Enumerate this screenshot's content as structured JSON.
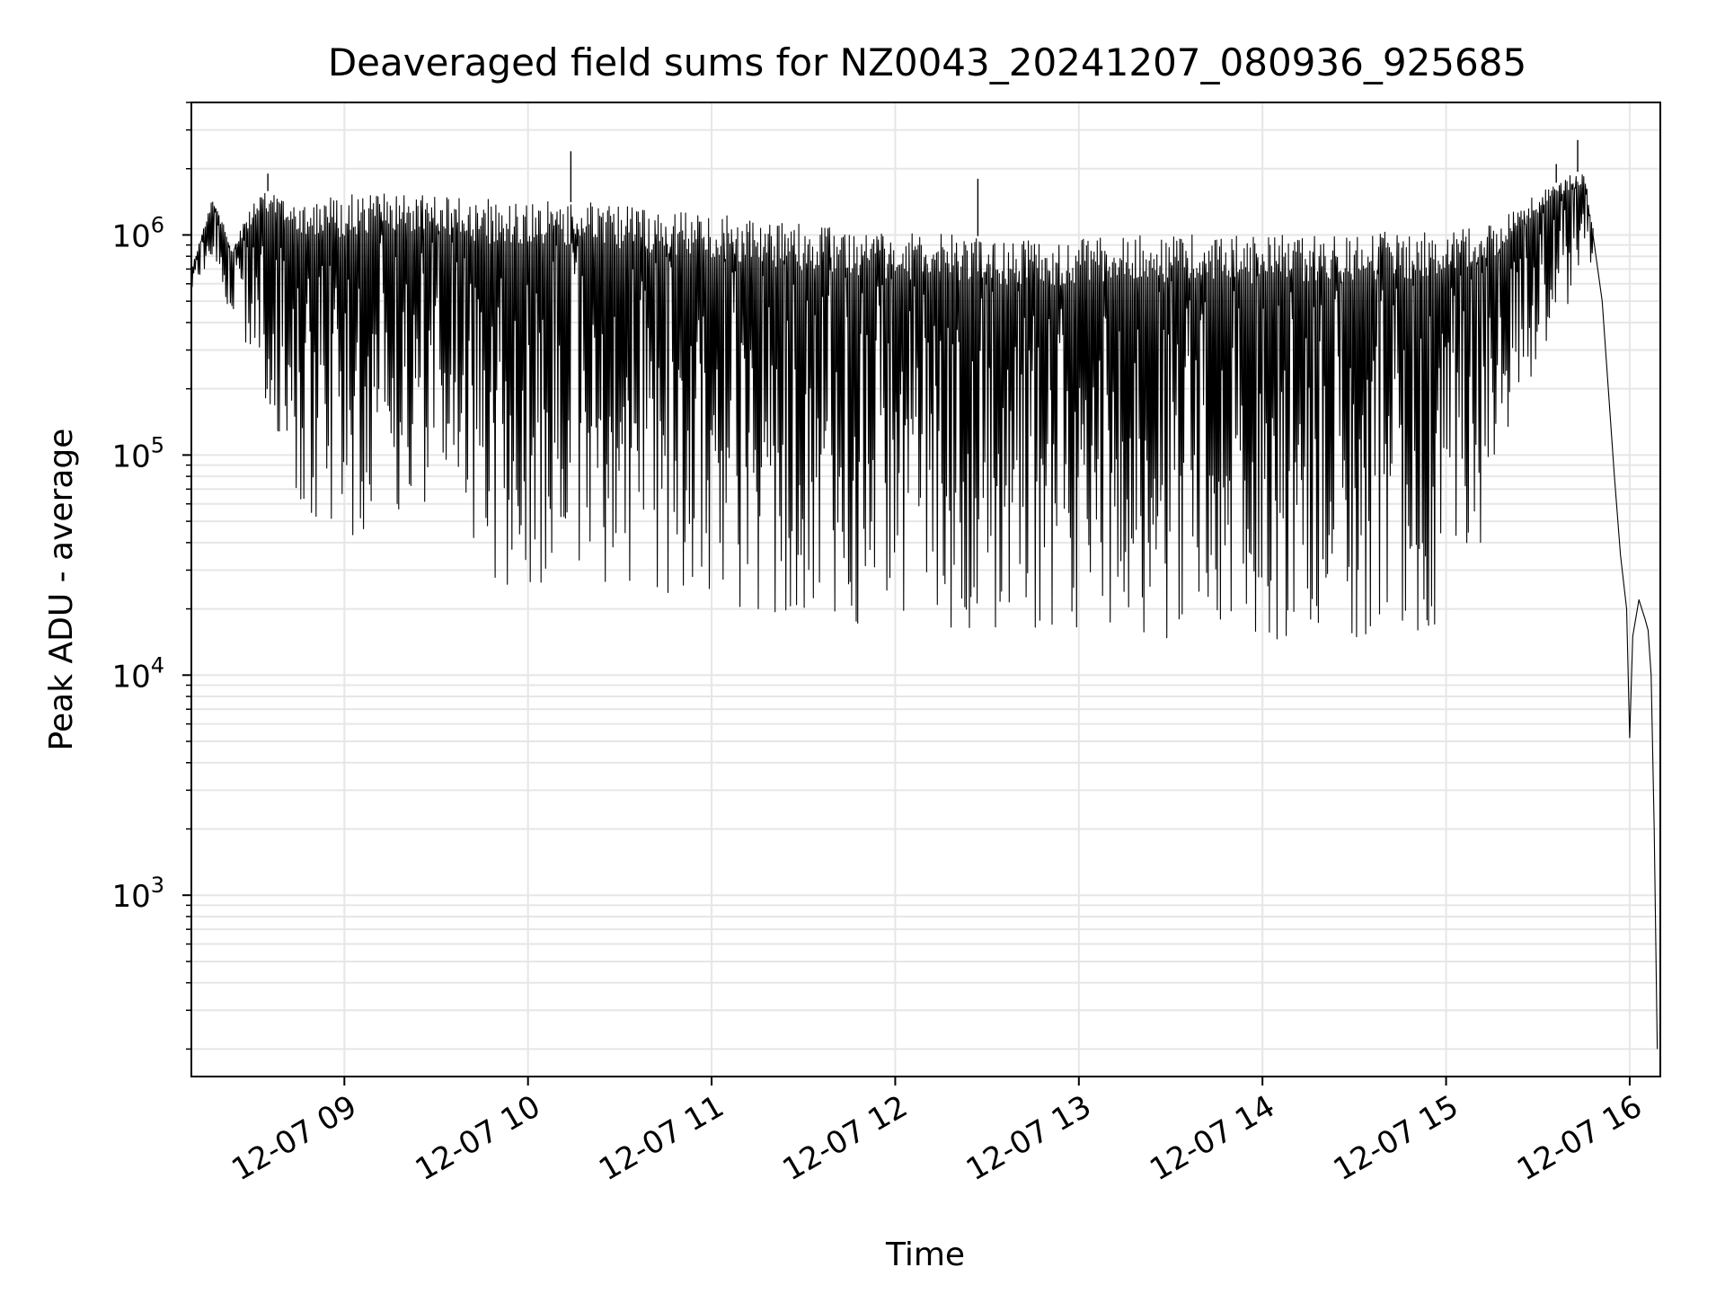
{
  "chart_data": {
    "type": "line",
    "title": "Deaveraged field sums for NZ0043_20241207_080936_925685",
    "xlabel": "Time",
    "ylabel": "Peak ADU - average",
    "yscale": "log",
    "grid": true,
    "legend": "none",
    "xlim": [
      "2024-12-07 08:10",
      "2024-12-07 16:10"
    ],
    "ylim": [
      150,
      4000000
    ],
    "xticks": [
      {
        "value": "2024-12-07 09:00",
        "label": "12-07 09"
      },
      {
        "value": "2024-12-07 10:00",
        "label": "12-07 10"
      },
      {
        "value": "2024-12-07 11:00",
        "label": "12-07 11"
      },
      {
        "value": "2024-12-07 12:00",
        "label": "12-07 12"
      },
      {
        "value": "2024-12-07 13:00",
        "label": "12-07 13"
      },
      {
        "value": "2024-12-07 14:00",
        "label": "12-07 14"
      },
      {
        "value": "2024-12-07 15:00",
        "label": "12-07 15"
      },
      {
        "value": "2024-12-07 16:00",
        "label": "12-07 16"
      }
    ],
    "yticks": [
      {
        "value": 1000,
        "base": "10",
        "exp": "3"
      },
      {
        "value": 10000,
        "base": "10",
        "exp": "4"
      },
      {
        "value": 100000,
        "base": "10",
        "exp": "5"
      },
      {
        "value": 1000000,
        "base": "10",
        "exp": "6"
      }
    ],
    "series": [
      {
        "color": "#000000",
        "envelope": [
          {
            "t": "2024-12-07 08:10",
            "peak": 700000,
            "trough": 550000
          },
          {
            "t": "2024-12-07 08:17",
            "peak": 1500000,
            "trough": 800000
          },
          {
            "t": "2024-12-07 08:23",
            "peak": 900000,
            "trough": 400000
          },
          {
            "t": "2024-12-07 08:33",
            "peak": 1600000,
            "trough": 200000
          },
          {
            "t": "2024-12-07 08:45",
            "peak": 1500000,
            "trough": 60000
          },
          {
            "t": "2024-12-07 08:55",
            "peak": 1500000,
            "trough": 35000
          },
          {
            "t": "2024-12-07 09:10",
            "peak": 1550000,
            "trough": 50000
          },
          {
            "t": "2024-12-07 09:30",
            "peak": 1500000,
            "trough": 60000
          },
          {
            "t": "2024-12-07 09:50",
            "peak": 1450000,
            "trough": 25000
          },
          {
            "t": "2024-12-07 10:20",
            "peak": 1400000,
            "trough": 25000
          },
          {
            "t": "2024-12-07 10:50",
            "peak": 1300000,
            "trough": 22000
          },
          {
            "t": "2024-12-07 11:20",
            "peak": 1150000,
            "trough": 18000
          },
          {
            "t": "2024-12-07 11:50",
            "peak": 1050000,
            "trough": 17000
          },
          {
            "t": "2024-12-07 12:20",
            "peak": 1000000,
            "trough": 16000
          },
          {
            "t": "2024-12-07 12:50",
            "peak": 950000,
            "trough": 15000
          },
          {
            "t": "2024-12-07 13:20",
            "peak": 1000000,
            "trough": 15000
          },
          {
            "t": "2024-12-07 13:50",
            "peak": 1000000,
            "trough": 14000
          },
          {
            "t": "2024-12-07 14:20",
            "peak": 1000000,
            "trough": 14000
          },
          {
            "t": "2024-12-07 14:50",
            "peak": 1050000,
            "trough": 15000
          },
          {
            "t": "2024-12-07 15:05",
            "peak": 1100000,
            "trough": 20000
          },
          {
            "t": "2024-12-07 15:15",
            "peak": 1150000,
            "trough": 40000
          },
          {
            "t": "2024-12-07 15:25",
            "peak": 1400000,
            "trough": 150000
          },
          {
            "t": "2024-12-07 15:35",
            "peak": 1700000,
            "trough": 400000
          },
          {
            "t": "2024-12-07 15:45",
            "peak": 2000000,
            "trough": 550000
          },
          {
            "t": "2024-12-07 15:48",
            "peak": 1100000,
            "trough": 700000
          }
        ],
        "spikes": [
          {
            "t": "2024-12-07 10:14",
            "value": 2400000
          },
          {
            "t": "2024-12-07 12:27",
            "value": 1800000
          },
          {
            "t": "2024-12-07 15:36",
            "value": 2100000
          },
          {
            "t": "2024-12-07 15:43",
            "value": 2700000
          },
          {
            "t": "2024-12-07 08:35",
            "value": 1900000
          }
        ],
        "tail": [
          {
            "t": "2024-12-07 15:48",
            "value": 1000000
          },
          {
            "t": "2024-12-07 15:51",
            "value": 500000
          },
          {
            "t": "2024-12-07 15:53",
            "value": 200000
          },
          {
            "t": "2024-12-07 15:55",
            "value": 80000
          },
          {
            "t": "2024-12-07 15:57",
            "value": 35000
          },
          {
            "t": "2024-12-07 15:59",
            "value": 20000
          },
          {
            "t": "2024-12-07 16:00",
            "value": 5200
          },
          {
            "t": "2024-12-07 16:01",
            "value": 15000
          },
          {
            "t": "2024-12-07 16:03",
            "value": 22000
          },
          {
            "t": "2024-12-07 16:05",
            "value": 18000
          },
          {
            "t": "2024-12-07 16:06",
            "value": 16000
          },
          {
            "t": "2024-12-07 16:07",
            "value": 10000
          },
          {
            "t": "2024-12-07 16:08",
            "value": 2000
          },
          {
            "t": "2024-12-07 16:09",
            "value": 200
          }
        ]
      }
    ]
  }
}
